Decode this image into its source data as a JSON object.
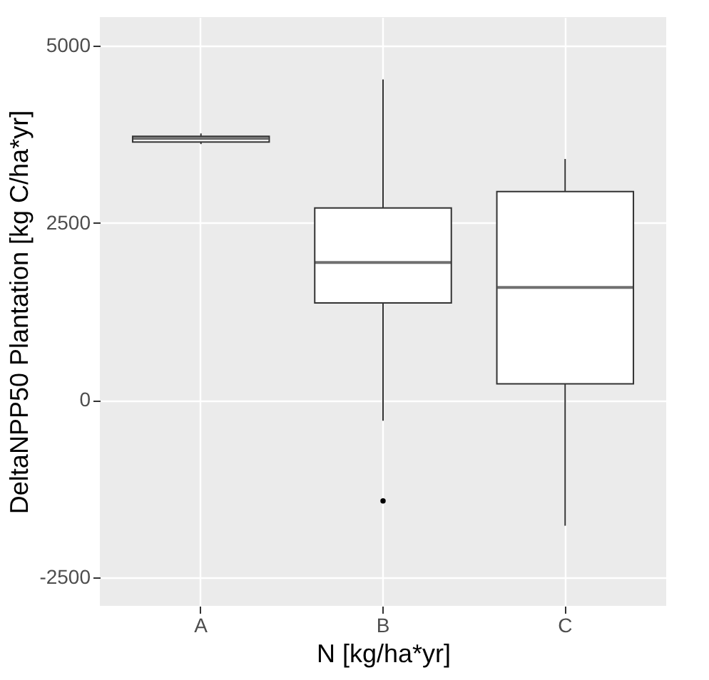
{
  "chart_data": {
    "type": "box",
    "xlabel": "N [kg/ha*yr]",
    "ylabel": "DeltaNPP50 Plantation [kg C/ha*yr]",
    "categories": [
      "A",
      "B",
      "C"
    ],
    "boxes": [
      {
        "low": 3610,
        "q1": 3640,
        "median": 3690,
        "q3": 3720,
        "high": 3760
      },
      {
        "low": -290,
        "q1": 1370,
        "median": 1940,
        "q3": 2710,
        "high": 4520,
        "outliers": [
          -1420
        ]
      },
      {
        "low": -1770,
        "q1": 230,
        "median": 1590,
        "q3": 2940,
        "high": 3400
      }
    ],
    "color": "#ffffff",
    "ylim": [
      -2900,
      5400
    ],
    "yticks": [
      -2500,
      0,
      2500,
      5000
    ],
    "grid": true
  }
}
